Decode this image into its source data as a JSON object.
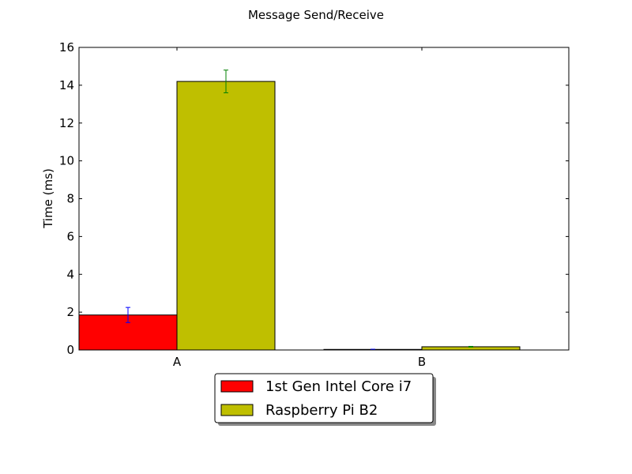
{
  "chart_data": {
    "type": "bar",
    "title": "Message Send/Receive",
    "xlabel": "",
    "ylabel": "Time (ms)",
    "categories": [
      "A",
      "B"
    ],
    "ylim": [
      0,
      16
    ],
    "yticks": [
      0,
      2,
      4,
      6,
      8,
      10,
      12,
      14,
      16
    ],
    "grid": false,
    "legend_position": "bottom-center",
    "series": [
      {
        "name": "1st Gen Intel Core i7",
        "color": "#ff0000",
        "error_color": "#0000ff",
        "values": [
          1.85,
          0.03
        ],
        "errors": [
          0.4,
          0.01
        ]
      },
      {
        "name": "Raspberry Pi B2",
        "color": "#bfbf00",
        "error_color": "#008000",
        "values": [
          14.2,
          0.17
        ],
        "errors": [
          0.6,
          0.02
        ]
      }
    ]
  }
}
